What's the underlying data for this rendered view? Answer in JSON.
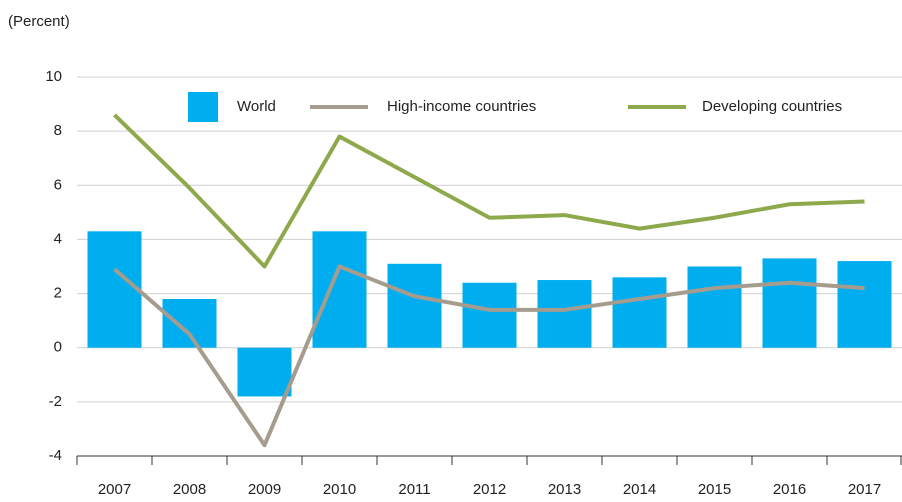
{
  "chart_data": {
    "type": "bar",
    "y_label": "(Percent)",
    "categories": [
      "2007",
      "2008",
      "2009",
      "2010",
      "2011",
      "2012",
      "2013",
      "2014",
      "2015",
      "2016",
      "2017"
    ],
    "series": [
      {
        "name": "World",
        "type": "bar",
        "color": "#00aeef",
        "values": [
          4.3,
          1.8,
          -1.8,
          4.3,
          3.1,
          2.4,
          2.5,
          2.6,
          3.0,
          3.3,
          3.2
        ]
      },
      {
        "name": "High-income countries",
        "type": "line",
        "color": "#a59c8e",
        "values": [
          2.9,
          0.5,
          -3.6,
          3.0,
          1.9,
          1.4,
          1.4,
          1.8,
          2.2,
          2.4,
          2.2
        ]
      },
      {
        "name": "Developing countries",
        "type": "line",
        "color": "#8ea84c",
        "values": [
          8.6,
          5.9,
          3.0,
          7.8,
          6.3,
          4.8,
          4.9,
          4.4,
          4.8,
          5.3,
          5.4
        ]
      }
    ],
    "ylim": [
      -4,
      10
    ],
    "yticks": [
      -4,
      -2,
      0,
      2,
      4,
      6,
      8,
      10
    ],
    "grid": true
  }
}
